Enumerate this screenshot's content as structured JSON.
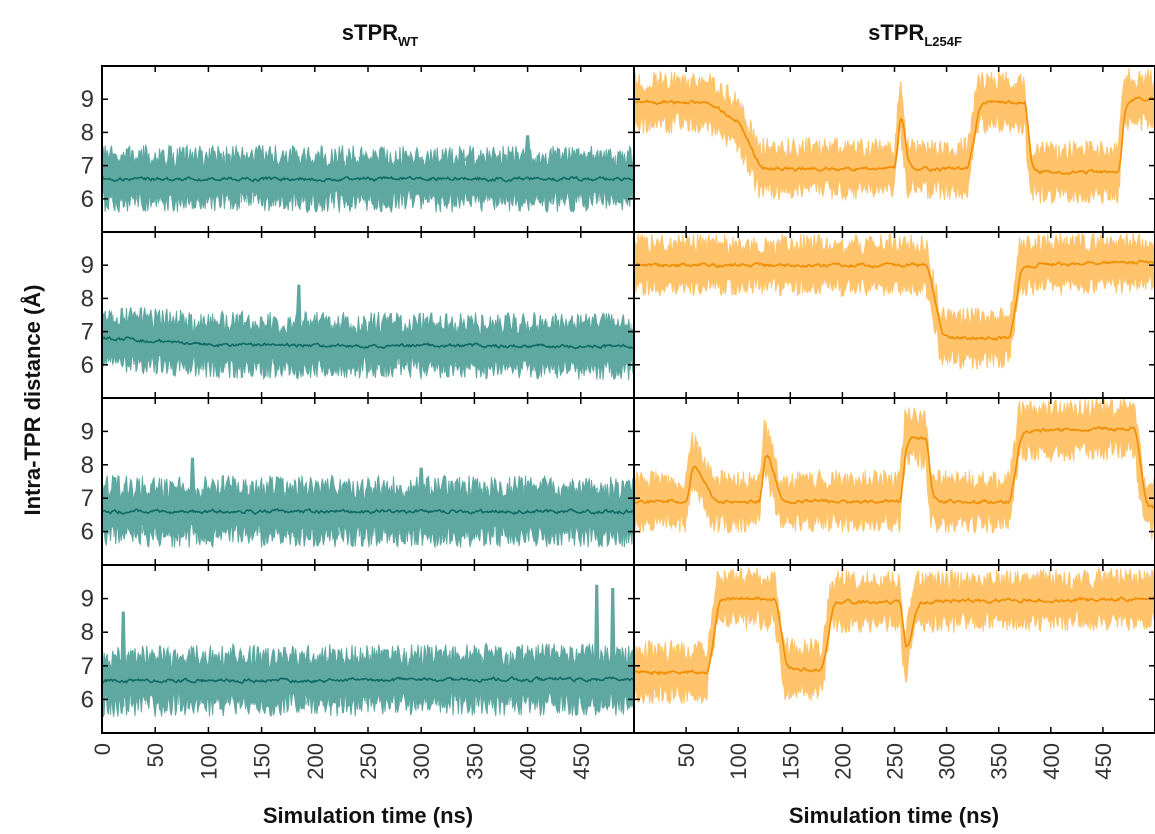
{
  "chart_data": {
    "type": "line",
    "ylabel": "Intra-TPR  distance (Å)",
    "xlabel": "Simulation time (ns)",
    "yticks": [
      6,
      7,
      8,
      9
    ],
    "ylim": [
      5.0,
      10.0
    ],
    "columns": [
      {
        "title_main": "sTPR",
        "title_sub": "WT",
        "color_band": "#5fa8a1",
        "color_line": "#0f6b63",
        "xlim": [
          0,
          500
        ],
        "xticks": [
          0,
          50,
          100,
          150,
          200,
          250,
          300,
          350,
          400,
          450
        ],
        "xtick_labels": [
          "0",
          "50",
          "100",
          "150",
          "200",
          "250",
          "300",
          "350",
          "400",
          "450"
        ],
        "panels": [
          {
            "mean": [
              [
                0,
                6.6
              ],
              [
                500,
                6.6
              ]
            ],
            "band": 0.75,
            "noise": 0.75,
            "spikes": [
              [
                400,
                7.9
              ]
            ]
          },
          {
            "mean": [
              [
                0,
                6.8
              ],
              [
                60,
                6.7
              ],
              [
                100,
                6.6
              ],
              [
                500,
                6.55
              ]
            ],
            "band": 0.75,
            "noise": 0.75,
            "spikes": [
              [
                20,
                7.4
              ],
              [
                185,
                8.4
              ]
            ]
          },
          {
            "mean": [
              [
                0,
                6.6
              ],
              [
                500,
                6.6
              ]
            ],
            "band": 0.8,
            "noise": 0.8,
            "spikes": [
              [
                85,
                8.2
              ],
              [
                300,
                7.9
              ]
            ]
          },
          {
            "mean": [
              [
                0,
                6.55
              ],
              [
                500,
                6.6
              ]
            ],
            "band": 0.8,
            "noise": 0.8,
            "spikes": [
              [
                20,
                8.6
              ],
              [
                465,
                9.4
              ],
              [
                480,
                9.3
              ]
            ]
          }
        ]
      },
      {
        "title_main": "sTPR",
        "title_sub": "L254F",
        "color_band": "#ffc46b",
        "color_line": "#f08c00",
        "xlim": [
          0,
          500
        ],
        "xticks": [
          50,
          100,
          150,
          200,
          250,
          300,
          350,
          400,
          450
        ],
        "xtick_labels": [
          "50",
          "100",
          "150",
          "200",
          "250",
          "300",
          "350",
          "400",
          "450"
        ],
        "panels": [
          {
            "mean": [
              [
                0,
                8.9
              ],
              [
                70,
                8.9
              ],
              [
                100,
                8.3
              ],
              [
                120,
                6.9
              ],
              [
                250,
                6.9
              ],
              [
                255,
                8.9
              ],
              [
                262,
                6.9
              ],
              [
                320,
                6.9
              ],
              [
                330,
                8.9
              ],
              [
                375,
                8.9
              ],
              [
                380,
                6.8
              ],
              [
                465,
                6.8
              ],
              [
                470,
                9.0
              ],
              [
                500,
                9.0
              ]
            ],
            "band": 0.7,
            "noise": 0.55,
            "spikes": []
          },
          {
            "mean": [
              [
                0,
                9.0
              ],
              [
                280,
                9.0
              ],
              [
                295,
                6.8
              ],
              [
                360,
                6.8
              ],
              [
                370,
                9.0
              ],
              [
                500,
                9.1
              ]
            ],
            "band": 0.7,
            "noise": 0.5,
            "spikes": []
          },
          {
            "mean": [
              [
                0,
                6.9
              ],
              [
                50,
                6.9
              ],
              [
                55,
                8.2
              ],
              [
                75,
                6.9
              ],
              [
                120,
                6.9
              ],
              [
                125,
                8.6
              ],
              [
                140,
                6.9
              ],
              [
                255,
                6.9
              ],
              [
                260,
                8.8
              ],
              [
                280,
                8.8
              ],
              [
                285,
                6.9
              ],
              [
                360,
                6.9
              ],
              [
                370,
                9.0
              ],
              [
                480,
                9.1
              ],
              [
                490,
                6.7
              ],
              [
                500,
                6.7
              ]
            ],
            "band": 0.7,
            "noise": 0.55,
            "spikes": []
          },
          {
            "mean": [
              [
                0,
                6.8
              ],
              [
                70,
                6.8
              ],
              [
                80,
                9.0
              ],
              [
                135,
                9.0
              ],
              [
                145,
                6.9
              ],
              [
                180,
                6.9
              ],
              [
                190,
                8.9
              ],
              [
                255,
                8.9
              ],
              [
                260,
                7.2
              ],
              [
                270,
                8.9
              ],
              [
                500,
                9.0
              ]
            ],
            "band": 0.7,
            "noise": 0.5,
            "spikes": []
          }
        ]
      }
    ]
  }
}
